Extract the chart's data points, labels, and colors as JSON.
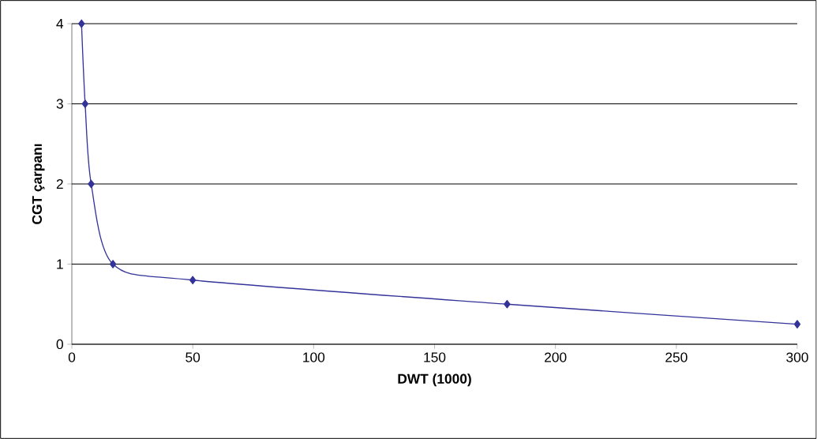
{
  "chart_data": {
    "type": "line",
    "xlabel": "DWT (1000)",
    "ylabel": "CGT çarpanı",
    "x": [
      4,
      5.5,
      8,
      17,
      50,
      180,
      300
    ],
    "values": [
      4,
      3,
      2,
      1,
      0.8,
      0.5,
      0.25
    ],
    "color": "#333399",
    "marker": "diamond",
    "line_style": "solid",
    "xlim": [
      0,
      300
    ],
    "xticks": [
      0,
      50,
      100,
      150,
      200,
      250,
      300
    ],
    "ylim": [
      0,
      4
    ],
    "yticks": [
      0,
      1,
      2,
      3,
      4
    ],
    "grid": "y"
  }
}
